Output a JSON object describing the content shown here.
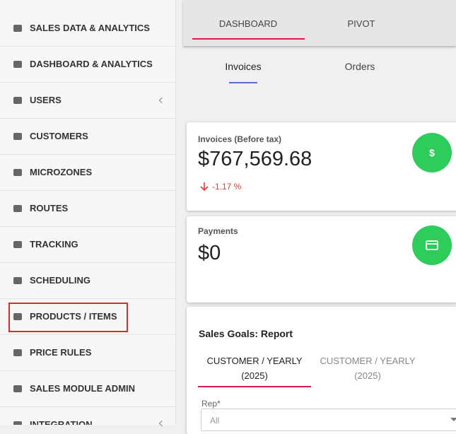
{
  "sidebar": {
    "items": [
      "SALES DATA & ANALYTICS",
      "DASHBOARD & ANALYTICS",
      "USERS",
      "CUSTOMERS",
      "MICROZONES",
      "ROUTES",
      "TRACKING",
      "SCHEDULING",
      "PRODUCTS / ITEMS",
      "PRICE RULES",
      "SALES MODULE ADMIN",
      "INTEGRATION"
    ]
  },
  "top_tabs": [
    "DASHBOARD",
    "PIVOT"
  ],
  "sub_tabs": [
    "Invoices",
    "Orders"
  ],
  "cards": [
    {
      "label": "Invoices (Before tax)",
      "value": "$767,569.68",
      "change": "-1.17 %",
      "icon": "$"
    },
    {
      "label": "Payments",
      "value": "$0"
    }
  ],
  "goals": {
    "title": "Sales Goals: Report",
    "tabs": [
      {
        "line1": "CUSTOMER / YEARLY",
        "line2": "(2025)"
      },
      {
        "line1": "CUSTOMER / YEARLY",
        "line2": "(2025)"
      }
    ],
    "rep_label": "Rep*",
    "rep_value": "All"
  }
}
